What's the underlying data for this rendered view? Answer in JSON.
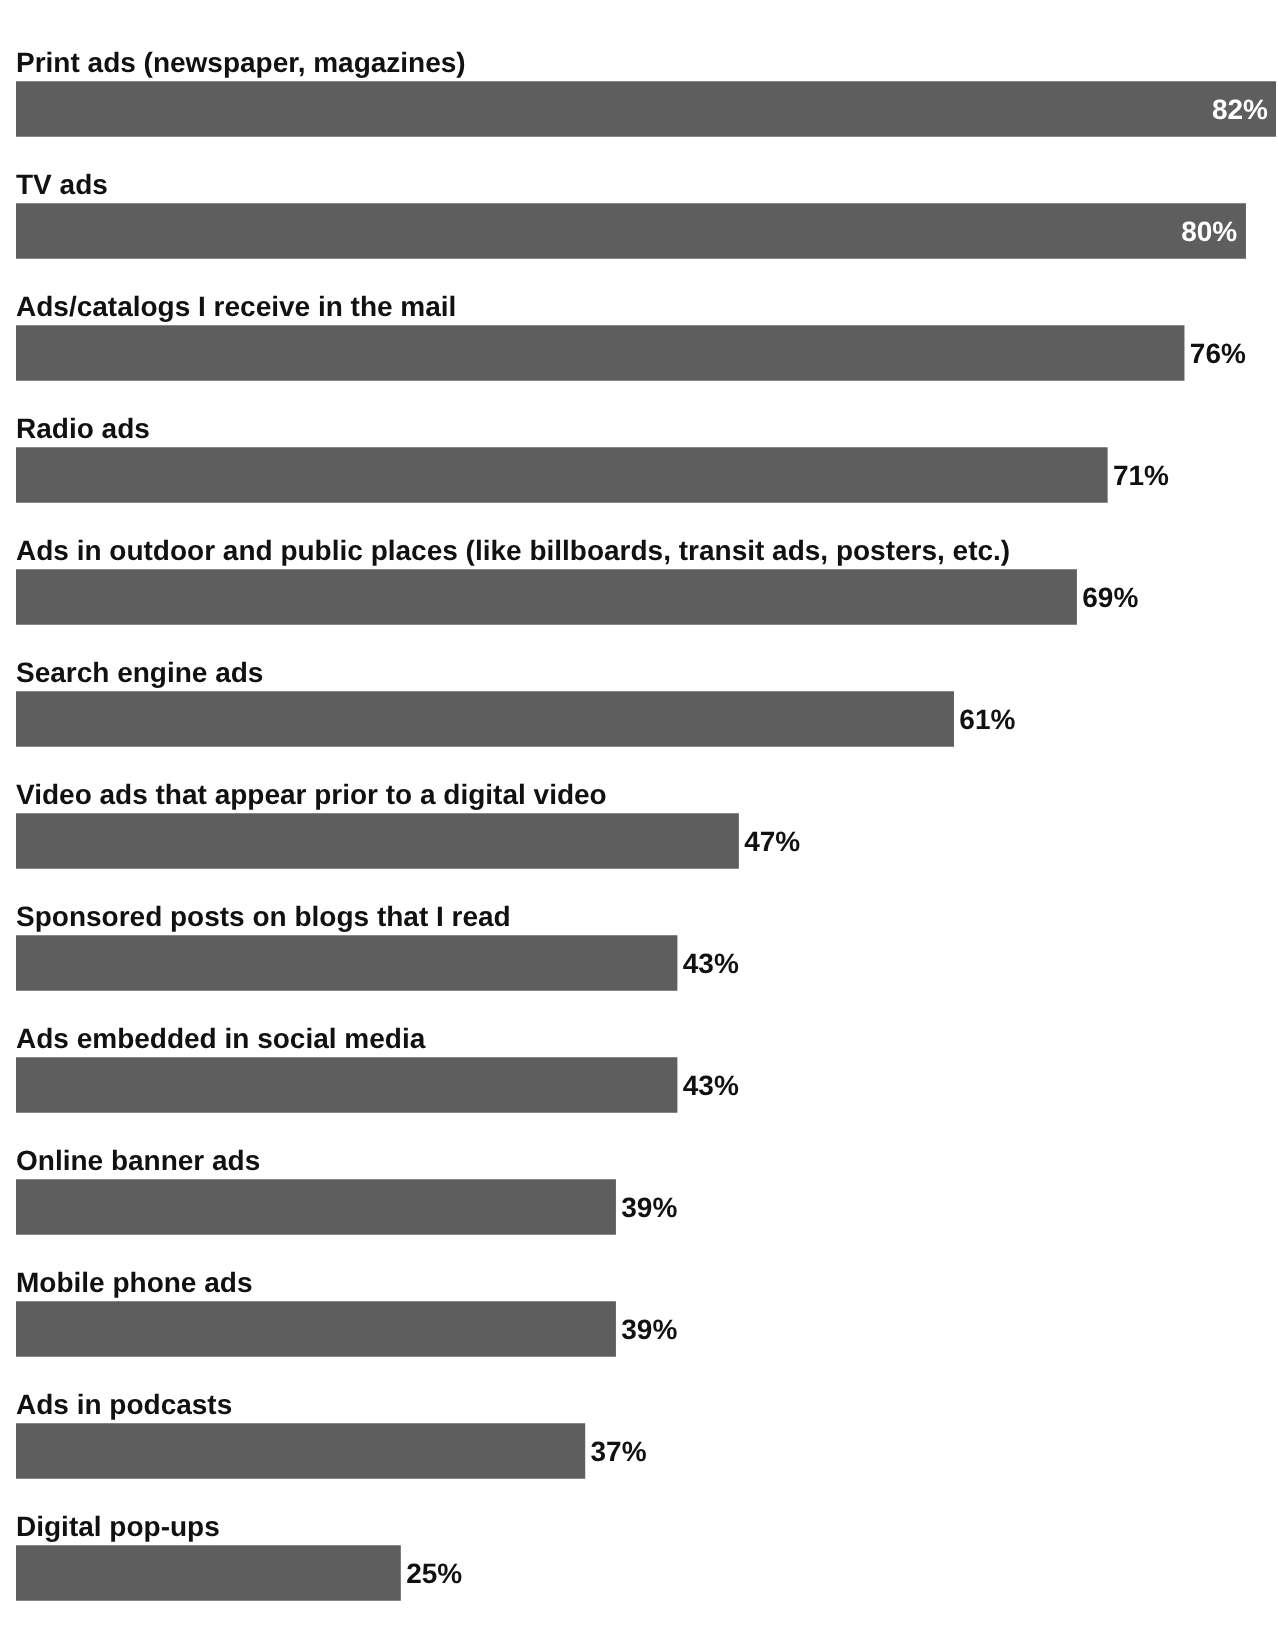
{
  "chart_data": {
    "type": "bar",
    "orientation": "horizontal",
    "categories": [
      "Print ads (newspaper, magazines)",
      "TV ads",
      "Ads/catalogs I receive in the mail",
      "Radio ads",
      "Ads in outdoor and public places (like billboards, transit ads, posters, etc.)",
      "Search engine ads",
      "Video ads that appear prior to a digital video",
      "Sponsored posts on blogs that I read",
      "Ads embedded in social media",
      "Online banner ads",
      "Mobile phone ads",
      "Ads in podcasts",
      "Digital pop-ups"
    ],
    "values": [
      82,
      80,
      76,
      71,
      69,
      61,
      47,
      43,
      43,
      39,
      39,
      37,
      25
    ],
    "value_labels": [
      "82%",
      "80%",
      "76%",
      "71%",
      "69%",
      "61%",
      "47%",
      "43%",
      "43%",
      "39%",
      "39%",
      "37%",
      "25%"
    ],
    "color": "#5e5e5e",
    "tick_labels": false,
    "legend": false
  }
}
